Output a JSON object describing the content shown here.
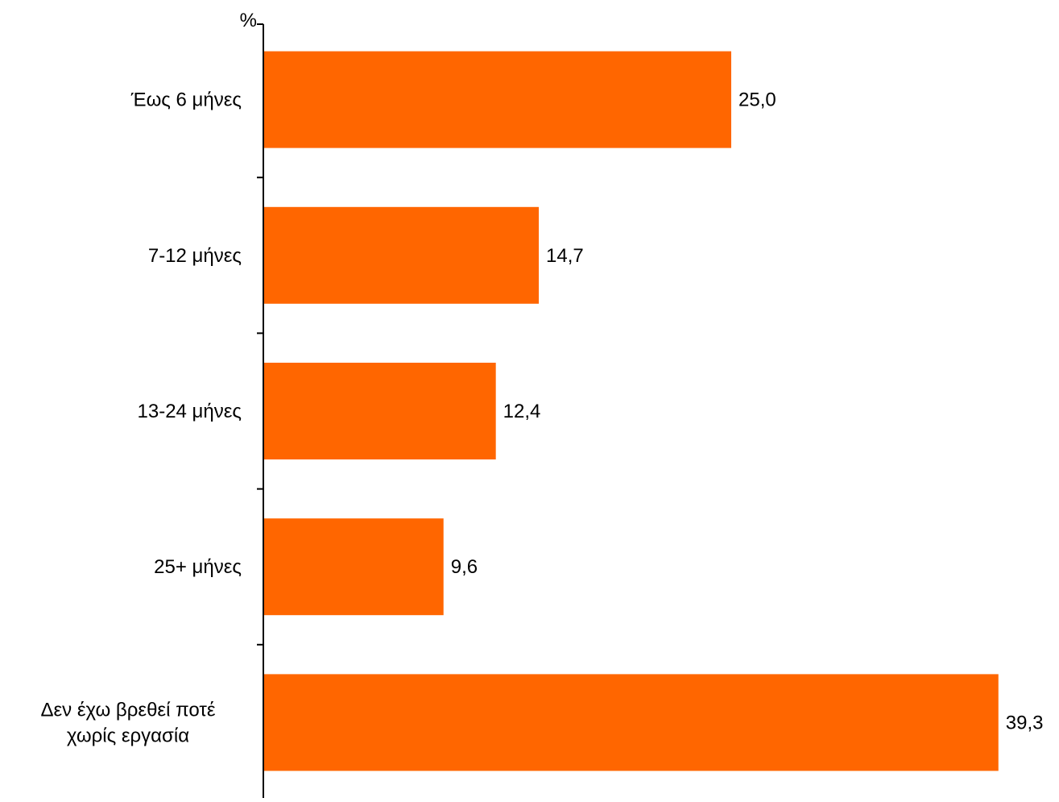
{
  "chart_data": {
    "type": "bar",
    "orientation": "horizontal",
    "unit_label": "%",
    "categories": [
      [
        "Έως 6 μήνες"
      ],
      [
        "7-12 μήνες"
      ],
      [
        "13-24 μήνες"
      ],
      [
        "25+ μήνες"
      ],
      [
        "Δεν έχω βρεθεί ποτέ",
        "χωρίς εργασία"
      ]
    ],
    "values": [
      25.0,
      14.7,
      12.4,
      9.6,
      39.3
    ],
    "value_labels": [
      "25,0",
      "14,7",
      "12,4",
      "9,6",
      "39,3"
    ],
    "xlim": [
      0,
      40
    ],
    "bar_color": "#FF6600",
    "grid": false,
    "legend": "none"
  }
}
